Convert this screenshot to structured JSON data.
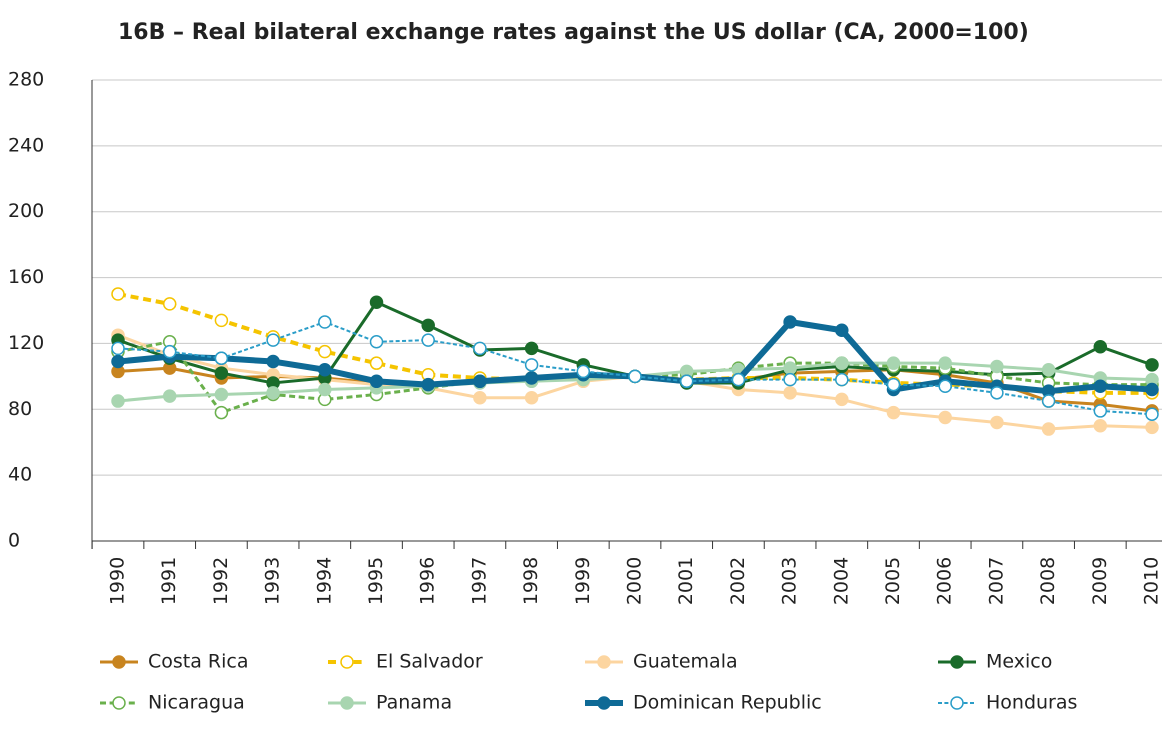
{
  "chart_data": {
    "type": "line",
    "title": "16B – Real bilateral exchange rates against the US dollar (CA, 2000=100)",
    "categories": [
      "1990",
      "1991",
      "1992",
      "1993",
      "1994",
      "1995",
      "1996",
      "1997",
      "1998",
      "1999",
      "2000",
      "2001",
      "2002",
      "2003",
      "2004",
      "2005",
      "2006",
      "2007",
      "2008",
      "2009",
      "2010"
    ],
    "ylim": [
      0,
      280
    ],
    "yticks": [
      0,
      40,
      80,
      120,
      160,
      200,
      240,
      280
    ],
    "grid": true,
    "series": [
      {
        "name": "Costa Rica",
        "color": "#c8841f",
        "line_style": "solid",
        "line_width": 3,
        "marker_fill": "filled",
        "values": [
          103,
          105,
          99,
          100,
          99,
          96,
          95,
          97,
          99,
          100,
          100,
          97,
          98,
          102,
          103,
          104,
          101,
          96,
          85,
          83,
          79
        ]
      },
      {
        "name": "El Salvador",
        "color": "#f5c400",
        "line_style": "dashed",
        "line_width": 4,
        "marker_fill": "open",
        "values": [
          150,
          144,
          134,
          124,
          115,
          108,
          101,
          99,
          98,
          99,
          100,
          98,
          99,
          99,
          98,
          96,
          95,
          94,
          91,
          90,
          90
        ]
      },
      {
        "name": "Guatemala",
        "color": "#fcd5a0",
        "line_style": "solid",
        "line_width": 3,
        "marker_fill": "filled",
        "values": [
          125,
          113,
          105,
          101,
          98,
          95,
          93,
          87,
          87,
          97,
          100,
          97,
          92,
          90,
          86,
          78,
          75,
          72,
          68,
          70,
          69
        ]
      },
      {
        "name": "Mexico",
        "color": "#1a6b2a",
        "line_style": "solid",
        "line_width": 3,
        "marker_fill": "filled",
        "values": [
          122,
          111,
          102,
          96,
          99,
          145,
          131,
          116,
          117,
          107,
          100,
          96,
          96,
          104,
          106,
          104,
          103,
          101,
          102,
          118,
          107
        ]
      },
      {
        "name": "Nicaragua",
        "color": "#6ab04c",
        "line_style": "dashed",
        "line_width": 3,
        "marker_fill": "open",
        "values": [
          115,
          121,
          78,
          89,
          86,
          89,
          93,
          97,
          99,
          100,
          100,
          101,
          105,
          108,
          108,
          106,
          105,
          100,
          96,
          95,
          95
        ]
      },
      {
        "name": "Panama",
        "color": "#a8d5b0",
        "line_style": "solid",
        "line_width": 3,
        "marker_fill": "filled",
        "values": [
          85,
          88,
          89,
          90,
          92,
          93,
          94,
          96,
          97,
          98,
          100,
          103,
          104,
          105,
          108,
          108,
          108,
          106,
          104,
          99,
          98
        ]
      },
      {
        "name": "Dominican Republic",
        "color": "#0e6a96",
        "line_style": "solid",
        "line_width": 6,
        "marker_fill": "filled",
        "values": [
          109,
          112,
          111,
          109,
          104,
          97,
          95,
          97,
          99,
          101,
          100,
          97,
          98,
          133,
          128,
          92,
          97,
          94,
          91,
          94,
          92
        ]
      },
      {
        "name": "Honduras",
        "color": "#2a9dc8",
        "line_style": "dashed",
        "line_width": 2,
        "marker_fill": "open",
        "values": [
          117,
          115,
          111,
          122,
          133,
          121,
          122,
          117,
          107,
          103,
          100,
          97,
          98,
          98,
          98,
          95,
          94,
          90,
          85,
          79,
          77
        ]
      }
    ]
  }
}
